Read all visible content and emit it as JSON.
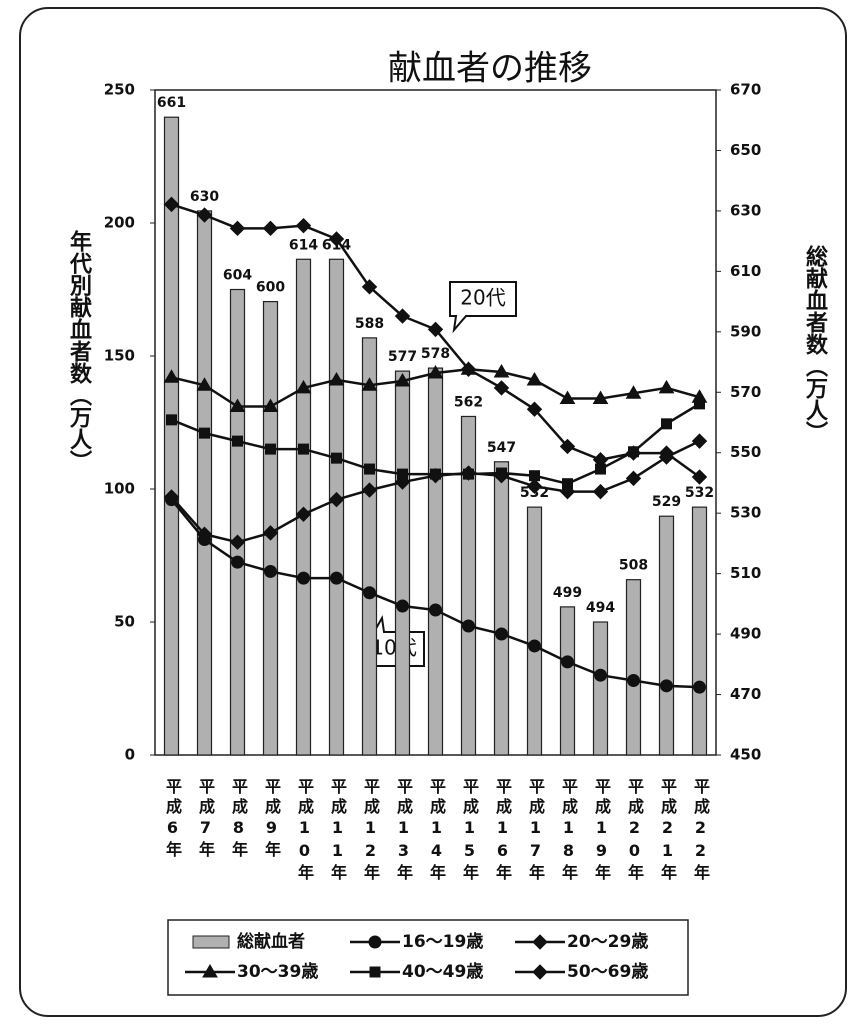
{
  "chart_data": {
    "type": "combo",
    "title": "献血者の推移",
    "ylabel": "年代別献血者数（万人）",
    "y2label": "総献血者数（万人）",
    "categories": [
      "平成6年",
      "平成7年",
      "平成8年",
      "平成9年",
      "平成10年",
      "平成11年",
      "平成12年",
      "平成13年",
      "平成14年",
      "平成15年",
      "平成16年",
      "平成17年",
      "平成18年",
      "平成19年",
      "平成20年",
      "平成21年",
      "平成22年"
    ],
    "ylim": [
      0,
      250
    ],
    "yticks": [
      0,
      50,
      100,
      150,
      200,
      250
    ],
    "y2lim": [
      450,
      670
    ],
    "y2ticks": [
      450,
      470,
      490,
      510,
      530,
      550,
      570,
      590,
      610,
      630,
      650,
      670
    ],
    "series": [
      {
        "name": "総献血者",
        "type": "bar",
        "axis": "y2",
        "color": "#b0b0b0",
        "values": [
          661,
          630,
          604,
          600,
          614,
          614,
          588,
          577,
          578,
          562,
          547,
          532,
          499,
          494,
          508,
          529,
          532
        ]
      },
      {
        "name": "16～19歳",
        "type": "line",
        "marker": "circle",
        "color": "#111111",
        "values": [
          96,
          81,
          72.5,
          69,
          66.5,
          66.5,
          61,
          56,
          54.5,
          48.5,
          45.5,
          41,
          35,
          30,
          28,
          26,
          25.5
        ]
      },
      {
        "name": "20～29歳",
        "type": "line",
        "marker": "diamond",
        "color": "#111111",
        "values": [
          207,
          203,
          198,
          198,
          199,
          194,
          176,
          165,
          160,
          145,
          138,
          130,
          116,
          111,
          113.5,
          113.5,
          104.5
        ]
      },
      {
        "name": "30～39歳",
        "type": "line",
        "marker": "triangle",
        "color": "#111111",
        "values": [
          142,
          139,
          131,
          131,
          138,
          141,
          139,
          140.6,
          143.6,
          145,
          144,
          141,
          134,
          134,
          136,
          138,
          134.5
        ]
      },
      {
        "name": "40～49歳",
        "type": "line",
        "marker": "square",
        "color": "#111111",
        "values": [
          126,
          121,
          118,
          115,
          115,
          111.6,
          107.5,
          105.6,
          105.6,
          105.6,
          106,
          105,
          102,
          107.5,
          114,
          124.5,
          132
        ]
      },
      {
        "name": "50～69歳",
        "type": "line",
        "marker": "diamond",
        "color": "#111111",
        "values": [
          97,
          83,
          80,
          83.5,
          90.5,
          96,
          99.6,
          102.6,
          105,
          106,
          105,
          101,
          99,
          99,
          104,
          112,
          118
        ]
      }
    ],
    "annotations": [
      "20代",
      "10代"
    ]
  }
}
